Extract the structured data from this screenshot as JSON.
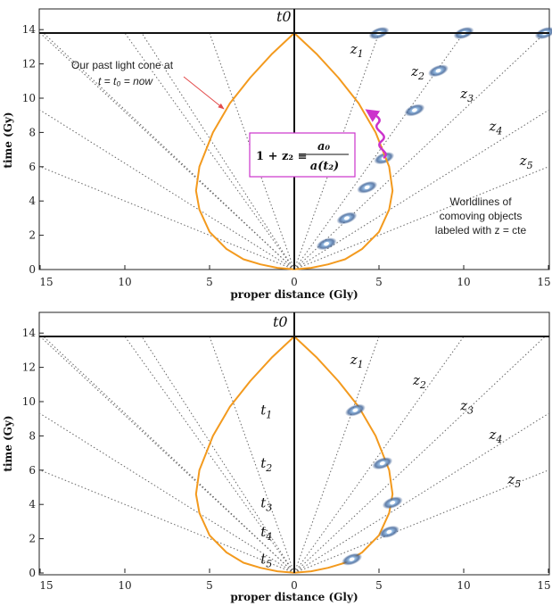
{
  "colors": {
    "light_cone": "#f39a1e",
    "arrow": "#e34a4a",
    "photon_path": "#cc33cc",
    "box_border": "#cc33cc",
    "worldline": "#666666",
    "axis": "#111111"
  },
  "icons": {
    "galaxy": "galaxy-icon"
  },
  "chart_data": [
    {
      "type": "line",
      "title": "",
      "xlabel": "proper distance (Gly)",
      "ylabel": "time (Gy)",
      "xlim": [
        -15,
        15
      ],
      "ylim": [
        0,
        15
      ],
      "x_tick_labels": [
        "15",
        "10",
        "5",
        "0",
        "5",
        "10",
        "15"
      ],
      "y_tick_labels": [
        "0",
        "2",
        "4",
        "6",
        "8",
        "10",
        "12",
        "14"
      ],
      "t0_label": "t0",
      "t0_value": 13.8,
      "light_cone_curve_points": [
        [
          0,
          0.01
        ],
        [
          1,
          0.1
        ],
        [
          2,
          0.3
        ],
        [
          3,
          0.6
        ],
        [
          4,
          1.2
        ],
        [
          5,
          2.2
        ],
        [
          5.6,
          3.5
        ],
        [
          5.8,
          4.6
        ],
        [
          5.6,
          6
        ],
        [
          4.8,
          8
        ],
        [
          3.8,
          9.7
        ],
        [
          2.6,
          11.2
        ],
        [
          1.3,
          12.6
        ],
        [
          0,
          13.8
        ]
      ],
      "worldlines": [
        {
          "label": "z1",
          "end": [
            5,
            13.8
          ]
        },
        {
          "label": "z2",
          "end": [
            10,
            13.8
          ]
        },
        {
          "label": "z3",
          "end": [
            14.8,
            13.8
          ]
        },
        {
          "label": "z4",
          "end": [
            15,
            9.3
          ]
        },
        {
          "label": "z5",
          "end": [
            15,
            6.0
          ]
        }
      ],
      "galaxies": [
        [
          5,
          13.8
        ],
        [
          10,
          13.8
        ],
        [
          14.8,
          13.8
        ],
        [
          8.5,
          11.6
        ],
        [
          7.1,
          9.3
        ],
        [
          5.3,
          6.5
        ],
        [
          4.3,
          4.8
        ],
        [
          3.1,
          3.0
        ],
        [
          1.9,
          1.5
        ]
      ],
      "annotations": {
        "cone_label_line1": "Our past light cone at",
        "cone_label_line2": "t = t₀ = now",
        "box_lhs": "1 + z₂ ≡",
        "box_numerator": "a₀",
        "box_denominator": "a(t₂)",
        "worldline_note_1": "Worldlines of",
        "worldline_note_2": "comoving objects",
        "worldline_note_3": "labeled with z = cte"
      }
    },
    {
      "type": "line",
      "title": "",
      "xlabel": "proper distance (Gly)",
      "ylabel": "time (Gy)",
      "xlim": [
        -15,
        15
      ],
      "ylim": [
        0,
        15
      ],
      "x_tick_labels": [
        "15",
        "10",
        "5",
        "0",
        "5",
        "10",
        "15"
      ],
      "y_tick_labels": [
        "0",
        "2",
        "4",
        "6",
        "8",
        "10",
        "12",
        "14"
      ],
      "t0_label": "t0",
      "t0_value": 13.8,
      "worldlines": [
        {
          "label": "z1",
          "end": [
            5,
            13.8
          ]
        },
        {
          "label": "z2",
          "end": [
            10,
            13.8
          ]
        },
        {
          "label": "z3",
          "end": [
            14.8,
            13.8
          ]
        },
        {
          "label": "z4",
          "end": [
            15,
            9.3
          ]
        },
        {
          "label": "z5",
          "end": [
            15,
            6.0
          ]
        }
      ],
      "galaxies": [
        [
          3.6,
          9.5
        ],
        [
          5.2,
          6.4
        ],
        [
          5.8,
          4.1
        ],
        [
          5.6,
          2.4
        ],
        [
          3.4,
          0.8
        ]
      ],
      "time_markers": [
        {
          "label": "t1",
          "t": 9.5
        },
        {
          "label": "t2",
          "t": 6.4
        },
        {
          "label": "t3",
          "t": 4.1
        },
        {
          "label": "t4",
          "t": 2.4
        },
        {
          "label": "t5",
          "t": 0.8
        }
      ]
    }
  ]
}
